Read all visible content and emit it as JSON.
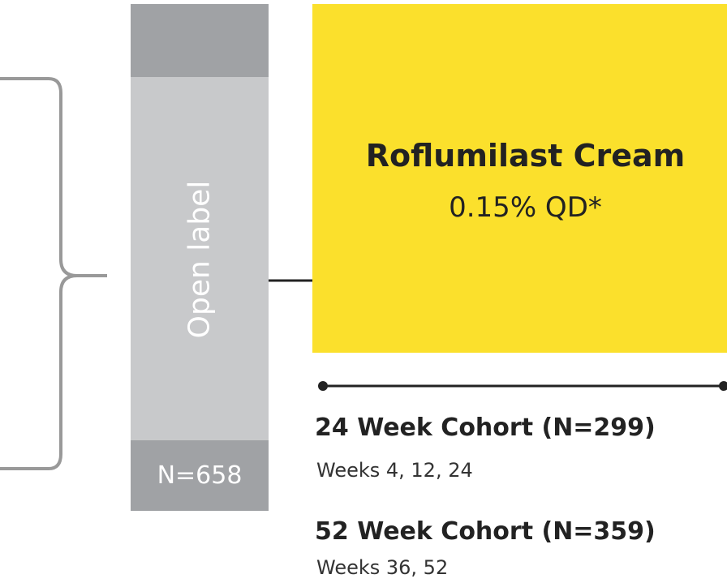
{
  "column": {
    "label": "Open label",
    "n": "N=658"
  },
  "treatment": {
    "title": "Roflumilast Cream",
    "dose": "0.15% QD*"
  },
  "cohorts": [
    {
      "title": "24 Week Cohort (N=299)",
      "weeks": "Weeks 4, 12, 24"
    },
    {
      "title": "52 Week Cohort (N=359)",
      "weeks": "Weeks 36, 52"
    }
  ]
}
